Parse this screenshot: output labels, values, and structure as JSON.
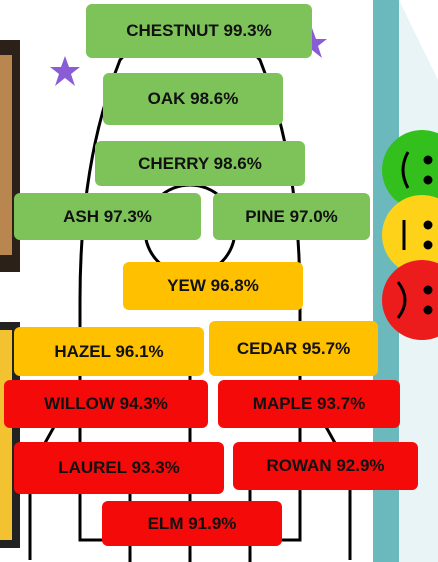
{
  "labels": [
    {
      "text": "CHESTNUT 99.3%",
      "color": "#7ec35a"
    },
    {
      "text": "OAK 98.6%",
      "color": "#7ec35a"
    },
    {
      "text": "CHERRY 98.6%",
      "color": "#7ec35a"
    },
    {
      "text": "ASH 97.3%",
      "color": "#7ec35a"
    },
    {
      "text": "PINE 97.0%",
      "color": "#7ec35a"
    },
    {
      "text": "YEW 96.8%",
      "color": "#ffc000"
    },
    {
      "text": "HAZEL 96.1%",
      "color": "#ffc000"
    },
    {
      "text": "CEDAR 95.7%",
      "color": "#ffc000"
    },
    {
      "text": "WILLOW 94.3%",
      "color": "#f50a0a"
    },
    {
      "text": "MAPLE 93.7%",
      "color": "#f50a0a"
    },
    {
      "text": "LAUREL 93.3%",
      "color": "#f50a0a"
    },
    {
      "text": "ROWAN 92.9%",
      "color": "#f50a0a"
    },
    {
      "text": "ELM 91.9%",
      "color": "#f50a0a"
    }
  ]
}
